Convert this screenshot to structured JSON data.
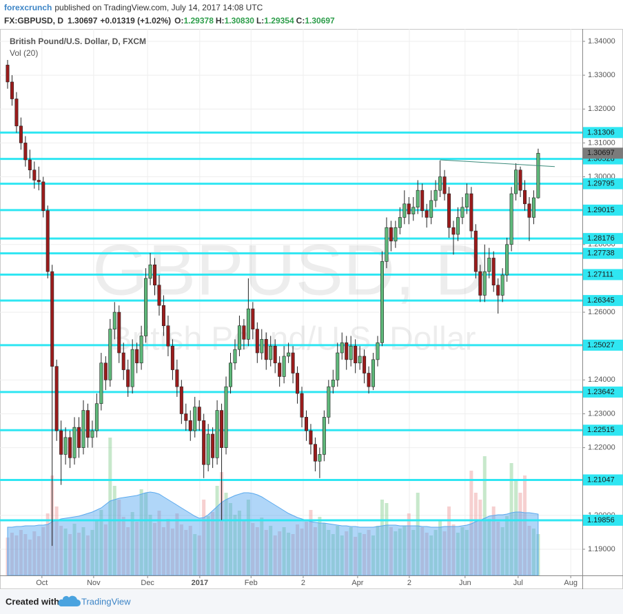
{
  "header": {
    "publisher": "forexcrunch",
    "published": "published on TradingView.com, July 14, 2017 14:08 UTC"
  },
  "quote": {
    "symbol": "FX:GBPUSD, D",
    "last": "1.30697",
    "change": "+0.01319 (+1.02%)",
    "fields": [
      {
        "label": "O:",
        "value": "1.29378"
      },
      {
        "label": "H:",
        "value": "1.30830"
      },
      {
        "label": "L:",
        "value": "1.29354"
      },
      {
        "label": "C:",
        "value": "1.30697"
      }
    ]
  },
  "footer": {
    "created": "Created with",
    "brand": "TradingView"
  },
  "chart_data": {
    "type": "candlestick",
    "title": "British Pound/U.S. Dollar, D, FXCM",
    "volume_title": "Vol (20)",
    "watermark": "GBPUSD, D",
    "watermark_subtitle": "British Pound/U.S. Dollar",
    "up_color": "#5fb87a",
    "down_color": "#9b1c1c",
    "level_color": "#2fe6f2",
    "volume_up_color": "rgba(130,205,140,0.45)",
    "volume_down_color": "rgba(235,150,150,0.45)",
    "volume_ma_color": "rgba(80,165,240,0.45)",
    "grid": true,
    "ylim": [
      1.18227,
      1.34366
    ],
    "yticks": [
      {
        "value": 1.34,
        "label": "1.34000"
      },
      {
        "value": 1.33,
        "label": "1.33000"
      },
      {
        "value": 1.32,
        "label": "1.32000"
      },
      {
        "value": 1.31,
        "label": "1.31000"
      },
      {
        "value": 1.3,
        "label": "1.30000"
      },
      {
        "value": 1.28,
        "label": "1.28000"
      },
      {
        "value": 1.26,
        "label": "1.26000"
      },
      {
        "value": 1.24,
        "label": "1.24000"
      },
      {
        "value": 1.23,
        "label": "1.23000"
      },
      {
        "value": 1.22,
        "label": "1.22000"
      },
      {
        "value": 1.2,
        "label": "1.20000"
      },
      {
        "value": 1.19,
        "label": "1.19000"
      }
    ],
    "xticks": [
      {
        "value": 7.7,
        "label": "Oct"
      },
      {
        "value": 19.3,
        "label": "Nov"
      },
      {
        "value": 31.4,
        "label": "Dec"
      },
      {
        "value": 43.1,
        "label": "2017"
      },
      {
        "value": 54.6,
        "label": "Feb"
      },
      {
        "value": 66.3,
        "label": "2"
      },
      {
        "value": 78.5,
        "label": "Apr"
      },
      {
        "value": 90.1,
        "label": "2"
      },
      {
        "value": 102.6,
        "label": "Jun"
      },
      {
        "value": 114.5,
        "label": "Jul"
      },
      {
        "value": 126.3,
        "label": "Aug"
      }
    ],
    "levels": [
      1.31306,
      1.30528,
      1.29795,
      1.29015,
      1.28176,
      1.27738,
      1.27111,
      1.26345,
      1.25027,
      1.23642,
      1.22515,
      1.21047,
      1.19856
    ],
    "last_price": 1.30697,
    "trendline": [
      1.305,
      1.303
    ],
    "ohlc": [
      [
        1.333,
        1.3345,
        1.326,
        1.328
      ],
      [
        1.328,
        1.33,
        1.321,
        1.323
      ],
      [
        1.323,
        1.325,
        1.313,
        1.315
      ],
      [
        1.315,
        1.3175,
        1.308,
        1.31
      ],
      [
        1.31,
        1.312,
        1.303,
        1.305
      ],
      [
        1.305,
        1.308,
        1.2995,
        1.302
      ],
      [
        1.302,
        1.3045,
        1.2965,
        1.299
      ],
      [
        1.299,
        1.303,
        1.296,
        1.2985
      ],
      [
        1.2985,
        1.3,
        1.288,
        1.29
      ],
      [
        1.29,
        1.2915,
        1.27,
        1.272
      ],
      [
        1.272,
        1.274,
        1.191,
        1.244
      ],
      [
        1.244,
        1.246,
        1.222,
        1.225
      ],
      [
        1.225,
        1.228,
        1.209,
        1.218
      ],
      [
        1.218,
        1.226,
        1.215,
        1.223
      ],
      [
        1.223,
        1.225,
        1.214,
        1.217
      ],
      [
        1.217,
        1.229,
        1.215,
        1.226
      ],
      [
        1.226,
        1.229,
        1.217,
        1.22
      ],
      [
        1.22,
        1.234,
        1.218,
        1.231
      ],
      [
        1.231,
        1.233,
        1.22,
        1.223
      ],
      [
        1.223,
        1.228,
        1.22,
        1.225
      ],
      [
        1.225,
        1.236,
        1.223,
        1.233
      ],
      [
        1.233,
        1.248,
        1.231,
        1.245
      ],
      [
        1.245,
        1.247,
        1.237,
        1.24
      ],
      [
        1.24,
        1.258,
        1.238,
        1.255
      ],
      [
        1.255,
        1.263,
        1.252,
        1.26
      ],
      [
        1.26,
        1.262,
        1.245,
        1.248
      ],
      [
        1.248,
        1.251,
        1.24,
        1.243
      ],
      [
        1.243,
        1.246,
        1.235,
        1.238
      ],
      [
        1.238,
        1.252,
        1.236,
        1.249
      ],
      [
        1.249,
        1.251,
        1.242,
        1.245
      ],
      [
        1.245,
        1.256,
        1.243,
        1.253
      ],
      [
        1.253,
        1.273,
        1.251,
        1.27
      ],
      [
        1.27,
        1.2775,
        1.268,
        1.274
      ],
      [
        1.274,
        1.276,
        1.265,
        1.268
      ],
      [
        1.268,
        1.271,
        1.259,
        1.262
      ],
      [
        1.262,
        1.265,
        1.253,
        1.256
      ],
      [
        1.256,
        1.259,
        1.247,
        1.25
      ],
      [
        1.25,
        1.252,
        1.24,
        1.243
      ],
      [
        1.243,
        1.246,
        1.235,
        1.238
      ],
      [
        1.238,
        1.24,
        1.227,
        1.23
      ],
      [
        1.23,
        1.233,
        1.225,
        1.228
      ],
      [
        1.228,
        1.231,
        1.222,
        1.225
      ],
      [
        1.225,
        1.235,
        1.223,
        1.232
      ],
      [
        1.232,
        1.234,
        1.225,
        1.228
      ],
      [
        1.228,
        1.23,
        1.211,
        1.215
      ],
      [
        1.215,
        1.227,
        1.213,
        1.224
      ],
      [
        1.224,
        1.226,
        1.214,
        1.217
      ],
      [
        1.217,
        1.234,
        1.215,
        1.231
      ],
      [
        1.231,
        1.233,
        1.1986,
        1.22
      ],
      [
        1.22,
        1.241,
        1.218,
        1.238
      ],
      [
        1.238,
        1.248,
        1.236,
        1.245
      ],
      [
        1.245,
        1.252,
        1.243,
        1.249
      ],
      [
        1.249,
        1.259,
        1.247,
        1.256
      ],
      [
        1.256,
        1.258,
        1.249,
        1.252
      ],
      [
        1.252,
        1.27,
        1.25,
        1.261
      ],
      [
        1.261,
        1.263,
        1.252,
        1.255
      ],
      [
        1.255,
        1.257,
        1.245,
        1.248
      ],
      [
        1.248,
        1.255,
        1.246,
        1.252
      ],
      [
        1.252,
        1.254,
        1.243,
        1.246
      ],
      [
        1.246,
        1.253,
        1.244,
        1.25
      ],
      [
        1.25,
        1.252,
        1.242,
        1.245
      ],
      [
        1.245,
        1.247,
        1.238,
        1.241
      ],
      [
        1.241,
        1.25,
        1.239,
        1.247
      ],
      [
        1.247,
        1.251,
        1.245,
        1.248
      ],
      [
        1.248,
        1.25,
        1.239,
        1.242
      ],
      [
        1.242,
        1.244,
        1.233,
        1.236
      ],
      [
        1.236,
        1.238,
        1.226,
        1.229
      ],
      [
        1.229,
        1.231,
        1.222,
        1.225
      ],
      [
        1.225,
        1.227,
        1.218,
        1.221
      ],
      [
        1.221,
        1.223,
        1.213,
        1.216
      ],
      [
        1.216,
        1.22,
        1.211,
        1.218
      ],
      [
        1.218,
        1.231,
        1.216,
        1.229
      ],
      [
        1.229,
        1.24,
        1.227,
        1.238
      ],
      [
        1.238,
        1.243,
        1.236,
        1.24
      ],
      [
        1.24,
        1.251,
        1.238,
        1.248
      ],
      [
        1.248,
        1.254,
        1.246,
        1.251
      ],
      [
        1.251,
        1.253,
        1.243,
        1.246
      ],
      [
        1.246,
        1.253,
        1.244,
        1.25
      ],
      [
        1.25,
        1.252,
        1.242,
        1.245
      ],
      [
        1.245,
        1.25,
        1.243,
        1.247
      ],
      [
        1.247,
        1.249,
        1.239,
        1.242
      ],
      [
        1.242,
        1.244,
        1.236,
        1.238
      ],
      [
        1.238,
        1.248,
        1.237,
        1.246
      ],
      [
        1.246,
        1.253,
        1.244,
        1.251
      ],
      [
        1.251,
        1.278,
        1.25,
        1.275
      ],
      [
        1.275,
        1.288,
        1.273,
        1.285
      ],
      [
        1.285,
        1.287,
        1.278,
        1.281
      ],
      [
        1.281,
        1.287,
        1.279,
        1.285
      ],
      [
        1.285,
        1.291,
        1.283,
        1.288
      ],
      [
        1.288,
        1.296,
        1.286,
        1.292
      ],
      [
        1.292,
        1.294,
        1.286,
        1.289
      ],
      [
        1.289,
        1.294,
        1.287,
        1.291
      ],
      [
        1.291,
        1.299,
        1.289,
        1.296
      ],
      [
        1.296,
        1.298,
        1.288,
        1.29
      ],
      [
        1.29,
        1.292,
        1.285,
        1.288
      ],
      [
        1.288,
        1.296,
        1.286,
        1.293
      ],
      [
        1.293,
        1.299,
        1.291,
        1.296
      ],
      [
        1.296,
        1.3048,
        1.294,
        1.3
      ],
      [
        1.3,
        1.302,
        1.293,
        1.295
      ],
      [
        1.295,
        1.297,
        1.282,
        1.285
      ],
      [
        1.285,
        1.287,
        1.277,
        1.283
      ],
      [
        1.283,
        1.291,
        1.281,
        1.288
      ],
      [
        1.288,
        1.294,
        1.286,
        1.291
      ],
      [
        1.291,
        1.298,
        1.289,
        1.295
      ],
      [
        1.295,
        1.297,
        1.282,
        1.284
      ],
      [
        1.284,
        1.286,
        1.27,
        1.272
      ],
      [
        1.272,
        1.274,
        1.263,
        1.265
      ],
      [
        1.265,
        1.28,
        1.263,
        1.272
      ],
      [
        1.272,
        1.279,
        1.27,
        1.276
      ],
      [
        1.276,
        1.278,
        1.266,
        1.268
      ],
      [
        1.268,
        1.27,
        1.2596,
        1.265
      ],
      [
        1.265,
        1.273,
        1.263,
        1.271
      ],
      [
        1.271,
        1.282,
        1.269,
        1.28
      ],
      [
        1.28,
        1.297,
        1.278,
        1.295
      ],
      [
        1.295,
        1.304,
        1.293,
        1.302
      ],
      [
        1.302,
        1.303,
        1.294,
        1.296
      ],
      [
        1.296,
        1.299,
        1.29,
        1.292
      ],
      [
        1.292,
        1.294,
        1.281,
        1.288
      ],
      [
        1.288,
        1.296,
        1.286,
        1.2938
      ],
      [
        1.29378,
        1.3083,
        1.29354,
        1.30697
      ]
    ],
    "volume_ylim": [
      0,
      200
    ],
    "volume": [
      55,
      62,
      58,
      66,
      60,
      52,
      64,
      57,
      70,
      90,
      145,
      100,
      72,
      68,
      60,
      75,
      62,
      70,
      58,
      66,
      80,
      95,
      74,
      200,
      130,
      110,
      85,
      70,
      92,
      78,
      125,
      120,
      88,
      76,
      94,
      70,
      82,
      68,
      90,
      74,
      66,
      72,
      60,
      58,
      110,
      86,
      92,
      130,
      150,
      120,
      105,
      88,
      94,
      80,
      110,
      76,
      70,
      84,
      66,
      72,
      58,
      64,
      70,
      62,
      60,
      74,
      68,
      78,
      95,
      70,
      85,
      76,
      66,
      60,
      72,
      58,
      64,
      70,
      56,
      62,
      60,
      66,
      58,
      72,
      110,
      105,
      70,
      64,
      68,
      72,
      90,
      66,
      120,
      70,
      62,
      58,
      66,
      80,
      64,
      100,
      74,
      62,
      70,
      66,
      152,
      120,
      110,
      173,
      82,
      100,
      78,
      70,
      86,
      163,
      140,
      120,
      145,
      72,
      68,
      60
    ],
    "volume_ma": [
      70,
      70,
      71,
      71,
      72,
      72,
      72,
      73,
      73,
      74,
      78,
      80,
      82,
      83,
      84,
      85,
      86,
      88,
      90,
      92,
      95,
      98,
      103,
      108,
      110,
      112,
      113,
      114,
      115,
      116,
      118,
      120,
      121,
      120,
      118,
      114,
      110,
      106,
      102,
      98,
      94,
      90,
      86,
      83,
      84,
      88,
      94,
      100,
      106,
      110,
      113,
      116,
      118,
      120,
      120,
      119,
      117,
      114,
      110,
      106,
      102,
      98,
      94,
      90,
      87,
      84,
      82,
      80,
      78,
      77,
      76,
      76,
      75,
      74,
      73,
      72,
      72,
      71,
      71,
      70,
      70,
      70,
      70,
      71,
      72,
      73,
      73,
      73,
      72,
      72,
      72,
      72,
      72,
      71,
      71,
      70,
      70,
      70,
      71,
      71,
      71,
      71,
      72,
      73,
      75,
      78,
      80,
      83,
      86,
      87,
      88,
      88,
      89,
      91,
      92,
      92,
      91,
      91,
      90,
      89
    ]
  }
}
